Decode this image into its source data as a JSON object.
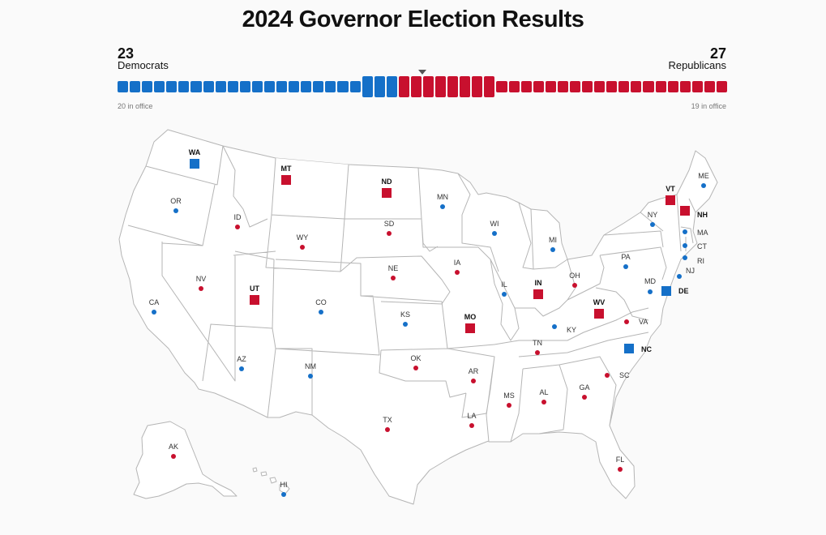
{
  "title": "2024 Governor Election Results",
  "dem": {
    "count": "23",
    "label": "Democrats",
    "in_office": "20 in office",
    "color": "#1570c8"
  },
  "rep": {
    "count": "27",
    "label": "Republicans",
    "in_office": "19 in office",
    "color": "#c8102e"
  },
  "seats": {
    "total": 50,
    "dem_not_up": 20,
    "dem_up": 3,
    "rep_up": 8,
    "rep_not_up": 19
  },
  "states": [
    {
      "abbr": "WA",
      "party": "D",
      "contested": true
    },
    {
      "abbr": "OR",
      "party": "D",
      "contested": false
    },
    {
      "abbr": "CA",
      "party": "D",
      "contested": false
    },
    {
      "abbr": "ID",
      "party": "R",
      "contested": false
    },
    {
      "abbr": "NV",
      "party": "R",
      "contested": false
    },
    {
      "abbr": "MT",
      "party": "R",
      "contested": true
    },
    {
      "abbr": "WY",
      "party": "R",
      "contested": false
    },
    {
      "abbr": "UT",
      "party": "R",
      "contested": true
    },
    {
      "abbr": "AZ",
      "party": "D",
      "contested": false
    },
    {
      "abbr": "CO",
      "party": "D",
      "contested": false
    },
    {
      "abbr": "NM",
      "party": "D",
      "contested": false
    },
    {
      "abbr": "ND",
      "party": "R",
      "contested": true
    },
    {
      "abbr": "SD",
      "party": "R",
      "contested": false
    },
    {
      "abbr": "NE",
      "party": "R",
      "contested": false
    },
    {
      "abbr": "KS",
      "party": "D",
      "contested": false
    },
    {
      "abbr": "OK",
      "party": "R",
      "contested": false
    },
    {
      "abbr": "TX",
      "party": "R",
      "contested": false
    },
    {
      "abbr": "MN",
      "party": "D",
      "contested": false
    },
    {
      "abbr": "IA",
      "party": "R",
      "contested": false
    },
    {
      "abbr": "MO",
      "party": "R",
      "contested": true
    },
    {
      "abbr": "AR",
      "party": "R",
      "contested": false
    },
    {
      "abbr": "LA",
      "party": "R",
      "contested": false
    },
    {
      "abbr": "WI",
      "party": "D",
      "contested": false
    },
    {
      "abbr": "IL",
      "party": "D",
      "contested": false
    },
    {
      "abbr": "MI",
      "party": "D",
      "contested": false
    },
    {
      "abbr": "IN",
      "party": "R",
      "contested": true
    },
    {
      "abbr": "OH",
      "party": "R",
      "contested": false
    },
    {
      "abbr": "KY",
      "party": "D",
      "contested": false
    },
    {
      "abbr": "TN",
      "party": "R",
      "contested": false
    },
    {
      "abbr": "MS",
      "party": "R",
      "contested": false
    },
    {
      "abbr": "AL",
      "party": "R",
      "contested": false
    },
    {
      "abbr": "GA",
      "party": "R",
      "contested": false
    },
    {
      "abbr": "FL",
      "party": "R",
      "contested": false
    },
    {
      "abbr": "SC",
      "party": "R",
      "contested": false
    },
    {
      "abbr": "NC",
      "party": "D",
      "contested": true
    },
    {
      "abbr": "VA",
      "party": "R",
      "contested": false
    },
    {
      "abbr": "WV",
      "party": "R",
      "contested": true
    },
    {
      "abbr": "PA",
      "party": "D",
      "contested": false
    },
    {
      "abbr": "NY",
      "party": "D",
      "contested": false
    },
    {
      "abbr": "VT",
      "party": "R",
      "contested": true
    },
    {
      "abbr": "NH",
      "party": "R",
      "contested": true
    },
    {
      "abbr": "ME",
      "party": "D",
      "contested": false
    },
    {
      "abbr": "MA",
      "party": "D",
      "contested": false
    },
    {
      "abbr": "CT",
      "party": "D",
      "contested": false
    },
    {
      "abbr": "RI",
      "party": "D",
      "contested": false
    },
    {
      "abbr": "NJ",
      "party": "D",
      "contested": false
    },
    {
      "abbr": "DE",
      "party": "D",
      "contested": true
    },
    {
      "abbr": "MD",
      "party": "D",
      "contested": false
    },
    {
      "abbr": "AK",
      "party": "R",
      "contested": false
    },
    {
      "abbr": "HI",
      "party": "D",
      "contested": false
    }
  ]
}
